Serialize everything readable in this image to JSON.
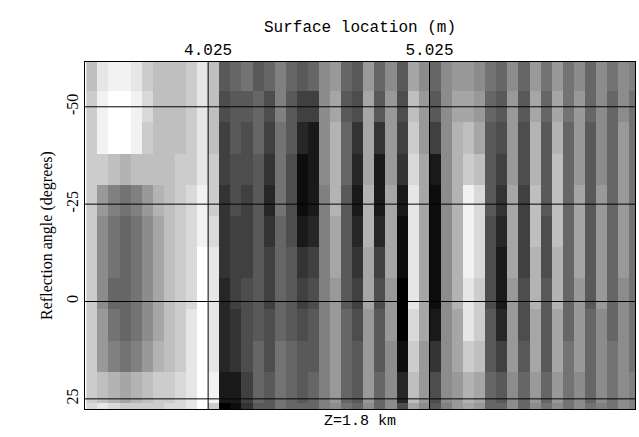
{
  "chart_data": {
    "type": "heatmap",
    "x_label": "Surface location (m)",
    "y_label": "Reflection angle (degrees)",
    "annotations": [
      {
        "text": "Z=1.8 km"
      }
    ],
    "xlim": [
      3.469,
      5.953
    ],
    "ylim": [
      -61.5,
      27.6
    ],
    "xticks": [
      4.025,
      5.025
    ],
    "yticks": [
      -50,
      -25,
      0,
      25
    ],
    "grid": true,
    "zlim": [
      -1,
      1
    ],
    "x": [
      3.5,
      3.55,
      3.6,
      3.65,
      3.7,
      3.75,
      3.8,
      3.85,
      3.9,
      3.95,
      4.0,
      4.05,
      4.1,
      4.15,
      4.2,
      4.25,
      4.3,
      4.35,
      4.4,
      4.45,
      4.5,
      4.55,
      4.6,
      4.65,
      4.7,
      4.75,
      4.8,
      4.85,
      4.9,
      4.95,
      5.0,
      5.05,
      5.1,
      5.15,
      5.2,
      5.25,
      5.3,
      5.35,
      5.4,
      5.45,
      5.5,
      5.55,
      5.6,
      5.65,
      5.7,
      5.75,
      5.8,
      5.85,
      5.9,
      5.95
    ],
    "y": [
      -58,
      -50,
      -42,
      -34,
      -26,
      -18,
      -10,
      -2,
      6,
      14,
      22,
      30
    ],
    "z": [
      [
        0.5,
        0.8,
        0.9,
        0.9,
        0.8,
        0.6,
        0.5,
        0.5,
        0.5,
        0.6,
        0.8,
        0.5,
        -0.3,
        -0.2,
        -0.1,
        -0.3,
        -0.2,
        0.0,
        -0.2,
        -0.3,
        -0.2,
        0.1,
        0.2,
        -0.2,
        -0.3,
        0.2,
        -0.2,
        0.1,
        -0.3,
        0.3,
        0.1,
        -0.2,
        0.1,
        0.2,
        0.2,
        0.1,
        -0.1,
        -0.2,
        0.1,
        -0.2,
        0.2,
        -0.1,
        0.2,
        -0.1,
        0.1,
        -0.2,
        0.1,
        -0.1,
        0.1,
        0.0
      ],
      [
        0.6,
        0.9,
        1.0,
        1.0,
        0.9,
        0.7,
        0.5,
        0.5,
        0.5,
        0.6,
        0.8,
        0.5,
        -0.4,
        -0.3,
        -0.3,
        -0.2,
        -0.4,
        0.0,
        -0.3,
        -0.5,
        -0.5,
        0.1,
        0.3,
        -0.3,
        -0.4,
        0.3,
        -0.3,
        0.2,
        -0.4,
        0.5,
        0.2,
        -0.3,
        0.1,
        0.3,
        0.3,
        0.2,
        -0.2,
        -0.3,
        0.2,
        -0.3,
        0.3,
        -0.2,
        0.3,
        -0.1,
        0.2,
        -0.2,
        0.1,
        -0.2,
        0.1,
        -0.1
      ],
      [
        0.6,
        0.9,
        1.0,
        1.0,
        0.9,
        0.6,
        0.5,
        0.5,
        0.5,
        0.6,
        0.8,
        0.5,
        -0.5,
        -0.3,
        -0.4,
        -0.2,
        -0.5,
        -0.1,
        -0.3,
        -0.7,
        -0.8,
        0.1,
        0.4,
        -0.2,
        -0.6,
        0.3,
        -0.6,
        0.2,
        -0.5,
        0.6,
        0.2,
        -0.5,
        0.1,
        0.4,
        0.5,
        0.3,
        -0.3,
        -0.4,
        0.2,
        -0.4,
        0.4,
        -0.3,
        0.4,
        -0.2,
        0.2,
        -0.3,
        0.1,
        -0.2,
        0.2,
        -0.1
      ],
      [
        0.6,
        0.6,
        0.5,
        0.4,
        0.5,
        0.5,
        0.5,
        0.5,
        0.6,
        0.6,
        0.8,
        0.6,
        -0.5,
        -0.4,
        -0.4,
        -0.3,
        -0.6,
        -0.1,
        -0.4,
        -0.9,
        -0.8,
        0.1,
        0.4,
        -0.2,
        -0.7,
        0.3,
        -0.8,
        0.2,
        -0.6,
        0.7,
        0.3,
        -0.8,
        0.1,
        0.4,
        0.6,
        0.5,
        -0.3,
        -0.5,
        0.2,
        -0.4,
        0.4,
        -0.3,
        0.5,
        -0.2,
        0.2,
        -0.3,
        0.1,
        -0.2,
        0.2,
        -0.1
      ],
      [
        0.6,
        0.2,
        0.0,
        -0.1,
        0.0,
        0.2,
        0.4,
        0.5,
        0.6,
        0.7,
        0.9,
        0.6,
        -0.6,
        -0.4,
        -0.5,
        -0.3,
        -0.7,
        -0.1,
        -0.4,
        -0.9,
        -0.8,
        0.0,
        0.4,
        -0.3,
        -0.8,
        0.4,
        -0.8,
        0.3,
        -0.8,
        0.8,
        0.3,
        -0.9,
        0.1,
        0.4,
        0.9,
        0.7,
        -0.3,
        -0.6,
        0.3,
        -0.5,
        0.5,
        -0.3,
        0.5,
        -0.2,
        0.3,
        -0.3,
        0.2,
        -0.2,
        0.2,
        -0.1
      ],
      [
        0.6,
        0.1,
        -0.1,
        -0.2,
        -0.1,
        0.1,
        0.3,
        0.5,
        0.6,
        0.7,
        0.9,
        0.7,
        -0.6,
        -0.5,
        -0.5,
        -0.3,
        -0.6,
        -0.2,
        -0.4,
        -0.8,
        -0.7,
        0.0,
        0.3,
        -0.3,
        -0.7,
        0.4,
        -0.7,
        0.3,
        -0.9,
        0.8,
        0.3,
        -0.9,
        0.1,
        0.4,
        0.9,
        0.7,
        -0.4,
        -0.7,
        0.3,
        -0.5,
        0.5,
        -0.4,
        0.5,
        -0.2,
        0.3,
        -0.3,
        0.2,
        -0.2,
        0.2,
        -0.1
      ],
      [
        0.6,
        0.1,
        -0.1,
        -0.2,
        -0.1,
        0.1,
        0.3,
        0.5,
        0.6,
        0.7,
        1.0,
        0.8,
        -0.6,
        -0.5,
        -0.5,
        -0.3,
        -0.5,
        -0.2,
        -0.3,
        -0.6,
        -0.5,
        0.0,
        0.3,
        -0.3,
        -0.6,
        0.3,
        -0.5,
        0.3,
        -0.9,
        0.8,
        0.3,
        -0.9,
        0.1,
        0.4,
        0.9,
        0.7,
        -0.4,
        -0.8,
        0.3,
        -0.5,
        0.4,
        -0.4,
        0.4,
        -0.2,
        0.3,
        -0.3,
        0.2,
        -0.2,
        0.2,
        -0.1
      ],
      [
        0.6,
        0.1,
        -0.2,
        -0.2,
        -0.1,
        0.1,
        0.3,
        0.5,
        0.6,
        0.7,
        1.0,
        0.8,
        -0.7,
        -0.5,
        -0.4,
        -0.3,
        -0.5,
        -0.2,
        -0.3,
        -0.5,
        -0.4,
        0.0,
        0.2,
        -0.3,
        -0.5,
        0.3,
        -0.4,
        0.2,
        -1.0,
        0.8,
        0.3,
        -0.9,
        0.1,
        0.4,
        0.8,
        0.6,
        -0.4,
        -0.8,
        0.2,
        -0.4,
        0.4,
        -0.3,
        0.4,
        -0.2,
        0.2,
        -0.3,
        0.2,
        -0.2,
        0.1,
        -0.1
      ],
      [
        0.6,
        0.2,
        -0.1,
        -0.2,
        -0.1,
        0.1,
        0.3,
        0.5,
        0.6,
        0.8,
        1.0,
        0.8,
        -0.7,
        -0.6,
        -0.4,
        -0.3,
        -0.4,
        -0.2,
        -0.3,
        -0.4,
        -0.3,
        0.0,
        0.2,
        -0.2,
        -0.4,
        0.2,
        -0.3,
        0.2,
        -1.0,
        0.7,
        0.3,
        -0.8,
        0.1,
        0.3,
        0.8,
        0.6,
        -0.3,
        -0.7,
        0.2,
        -0.4,
        0.3,
        -0.3,
        0.3,
        -0.2,
        0.2,
        -0.2,
        0.1,
        -0.2,
        0.1,
        -0.1
      ],
      [
        0.6,
        0.2,
        0.0,
        -0.1,
        0.0,
        0.2,
        0.4,
        0.5,
        0.6,
        0.8,
        1.0,
        0.8,
        -0.7,
        -0.6,
        -0.4,
        -0.2,
        -0.4,
        -0.1,
        -0.2,
        -0.3,
        -0.3,
        0.0,
        0.2,
        -0.2,
        -0.3,
        0.2,
        -0.3,
        0.1,
        -0.9,
        0.6,
        0.2,
        -0.6,
        0.1,
        0.3,
        0.6,
        0.5,
        -0.3,
        -0.5,
        0.2,
        -0.3,
        0.3,
        -0.3,
        0.3,
        -0.1,
        0.2,
        -0.2,
        0.1,
        -0.1,
        0.1,
        -0.1
      ],
      [
        0.6,
        0.5,
        0.4,
        0.3,
        0.4,
        0.5,
        0.6,
        0.6,
        0.7,
        0.8,
        1.0,
        0.9,
        -0.8,
        -0.8,
        -0.5,
        -0.2,
        -0.3,
        -0.1,
        -0.2,
        -0.3,
        -0.2,
        0.0,
        0.2,
        -0.2,
        -0.3,
        0.2,
        -0.2,
        0.1,
        -0.7,
        0.5,
        0.2,
        -0.4,
        0.1,
        0.2,
        0.4,
        0.3,
        -0.2,
        -0.3,
        0.1,
        -0.2,
        0.2,
        -0.2,
        0.2,
        -0.1,
        0.1,
        -0.2,
        0.1,
        -0.1,
        0.1,
        0.0
      ],
      [
        0.7,
        0.8,
        0.7,
        0.6,
        0.6,
        0.6,
        0.6,
        0.7,
        0.7,
        0.8,
        1.0,
        0.6,
        -1.0,
        -0.9,
        -0.6,
        -0.3,
        -0.3,
        -0.1,
        -0.2,
        -0.2,
        -0.2,
        0.0,
        0.1,
        -0.1,
        -0.2,
        0.1,
        -0.2,
        0.1,
        -0.4,
        0.3,
        0.1,
        -0.3,
        0.0,
        0.2,
        0.3,
        0.2,
        -0.2,
        -0.2,
        0.1,
        -0.2,
        0.1,
        -0.1,
        0.1,
        -0.1,
        0.1,
        -0.1,
        0.0,
        -0.1,
        0.1,
        0.0
      ]
    ]
  }
}
